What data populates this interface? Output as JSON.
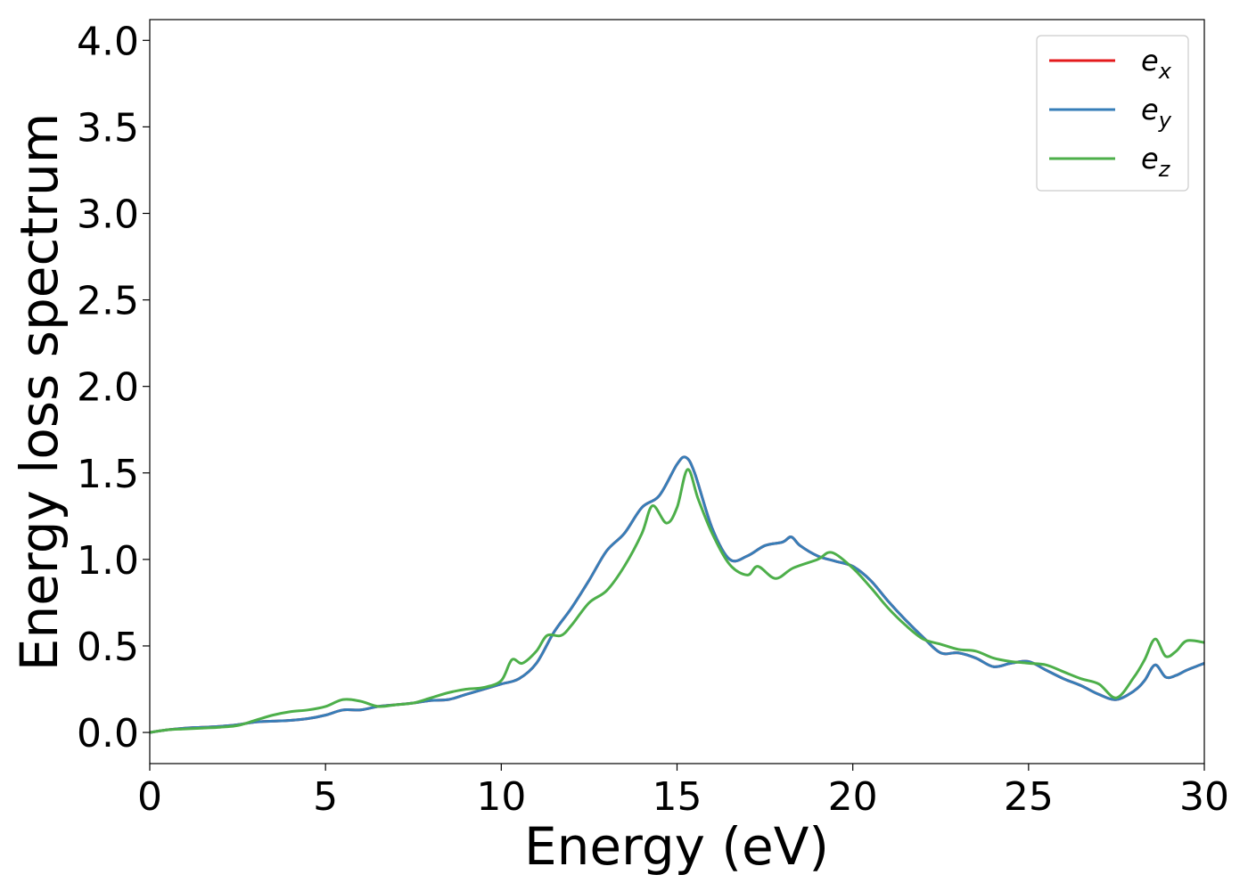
{
  "chart_data": {
    "type": "line",
    "title": "",
    "xlabel": "Energy (eV)",
    "ylabel": "Energy loss spectrum",
    "xlim": [
      0,
      30
    ],
    "ylim": [
      -0.18,
      4.12
    ],
    "xticks": [
      0,
      5,
      10,
      15,
      20,
      25,
      30
    ],
    "xtick_labels": [
      "0",
      "5",
      "10",
      "15",
      "20",
      "25",
      "30"
    ],
    "yticks": [
      0.0,
      0.5,
      1.0,
      1.5,
      2.0,
      2.5,
      3.0,
      3.5,
      4.0
    ],
    "ytick_labels": [
      "0.0",
      "0.5",
      "1.0",
      "1.5",
      "2.0",
      "2.5",
      "3.0",
      "3.5",
      "4.0"
    ],
    "grid": false,
    "legend_position": "top-right",
    "series": [
      {
        "name": "e_x",
        "label_base": "e",
        "label_sub": "x",
        "color": "#e41a1c",
        "x": [
          0,
          0.5,
          1,
          1.5,
          2,
          2.5,
          3,
          3.5,
          4,
          4.5,
          5,
          5.5,
          6,
          6.5,
          7,
          7.5,
          8,
          8.5,
          9,
          9.5,
          10,
          10.5,
          11,
          11.5,
          12,
          12.5,
          13,
          13.5,
          14,
          14.5,
          15,
          15.25,
          15.5,
          16,
          16.5,
          17,
          17.5,
          18,
          18.25,
          18.5,
          19,
          19.5,
          20,
          20.5,
          21,
          21.5,
          22,
          22.5,
          23,
          23.5,
          24,
          24.5,
          25,
          25.5,
          26,
          26.5,
          27,
          27.5,
          28,
          28.3,
          28.6,
          28.9,
          29.2,
          29.5,
          30
        ],
        "y": [
          0.0,
          0.015,
          0.025,
          0.03,
          0.035,
          0.045,
          0.06,
          0.065,
          0.07,
          0.08,
          0.1,
          0.13,
          0.13,
          0.15,
          0.16,
          0.17,
          0.185,
          0.19,
          0.22,
          0.25,
          0.28,
          0.31,
          0.4,
          0.58,
          0.72,
          0.88,
          1.05,
          1.15,
          1.3,
          1.37,
          1.55,
          1.59,
          1.5,
          1.18,
          1.0,
          1.02,
          1.08,
          1.1,
          1.13,
          1.08,
          1.02,
          0.99,
          0.96,
          0.88,
          0.76,
          0.65,
          0.55,
          0.46,
          0.46,
          0.43,
          0.38,
          0.4,
          0.41,
          0.36,
          0.31,
          0.27,
          0.22,
          0.19,
          0.24,
          0.3,
          0.39,
          0.32,
          0.33,
          0.36,
          0.4
        ]
      },
      {
        "name": "e_y",
        "label_base": "e",
        "label_sub": "y",
        "color": "#377eb8",
        "x": [
          0,
          0.5,
          1,
          1.5,
          2,
          2.5,
          3,
          3.5,
          4,
          4.5,
          5,
          5.5,
          6,
          6.5,
          7,
          7.5,
          8,
          8.5,
          9,
          9.5,
          10,
          10.5,
          11,
          11.5,
          12,
          12.5,
          13,
          13.5,
          14,
          14.5,
          15,
          15.25,
          15.5,
          16,
          16.5,
          17,
          17.5,
          18,
          18.25,
          18.5,
          19,
          19.5,
          20,
          20.5,
          21,
          21.5,
          22,
          22.5,
          23,
          23.5,
          24,
          24.5,
          25,
          25.5,
          26,
          26.5,
          27,
          27.5,
          28,
          28.3,
          28.6,
          28.9,
          29.2,
          29.5,
          30
        ],
        "y": [
          0.0,
          0.015,
          0.025,
          0.03,
          0.035,
          0.045,
          0.06,
          0.065,
          0.07,
          0.08,
          0.1,
          0.13,
          0.13,
          0.15,
          0.16,
          0.17,
          0.185,
          0.19,
          0.22,
          0.25,
          0.28,
          0.31,
          0.4,
          0.58,
          0.72,
          0.88,
          1.05,
          1.15,
          1.3,
          1.37,
          1.55,
          1.59,
          1.5,
          1.18,
          1.0,
          1.02,
          1.08,
          1.1,
          1.13,
          1.08,
          1.02,
          0.99,
          0.96,
          0.88,
          0.76,
          0.65,
          0.55,
          0.46,
          0.46,
          0.43,
          0.38,
          0.4,
          0.41,
          0.36,
          0.31,
          0.27,
          0.22,
          0.19,
          0.24,
          0.3,
          0.39,
          0.32,
          0.33,
          0.36,
          0.4
        ]
      },
      {
        "name": "e_z",
        "label_base": "e",
        "label_sub": "z",
        "color": "#4daf4a",
        "x": [
          0,
          0.5,
          1,
          1.5,
          2,
          2.5,
          3,
          3.5,
          4,
          4.5,
          5,
          5.5,
          6,
          6.5,
          7,
          7.5,
          8,
          8.5,
          9,
          9.5,
          10,
          10.3,
          10.6,
          11,
          11.3,
          11.7,
          12,
          12.5,
          13,
          13.5,
          14,
          14.3,
          14.7,
          15,
          15.3,
          15.6,
          16,
          16.5,
          17,
          17.3,
          17.8,
          18.3,
          19,
          19.4,
          20,
          20.5,
          21,
          21.5,
          22,
          22.5,
          23,
          23.5,
          24,
          24.5,
          25,
          25.5,
          26,
          26.5,
          27,
          27.5,
          28,
          28.3,
          28.6,
          28.9,
          29.2,
          29.5,
          30
        ],
        "y": [
          0.0,
          0.015,
          0.02,
          0.025,
          0.03,
          0.04,
          0.07,
          0.1,
          0.12,
          0.13,
          0.15,
          0.19,
          0.18,
          0.15,
          0.16,
          0.17,
          0.2,
          0.23,
          0.25,
          0.26,
          0.3,
          0.42,
          0.4,
          0.47,
          0.56,
          0.56,
          0.62,
          0.75,
          0.82,
          0.96,
          1.15,
          1.31,
          1.21,
          1.3,
          1.52,
          1.35,
          1.15,
          0.97,
          0.91,
          0.96,
          0.89,
          0.95,
          1.0,
          1.04,
          0.95,
          0.84,
          0.72,
          0.62,
          0.54,
          0.51,
          0.48,
          0.47,
          0.43,
          0.41,
          0.4,
          0.39,
          0.35,
          0.31,
          0.28,
          0.2,
          0.32,
          0.42,
          0.54,
          0.44,
          0.47,
          0.53,
          0.52
        ]
      }
    ]
  }
}
